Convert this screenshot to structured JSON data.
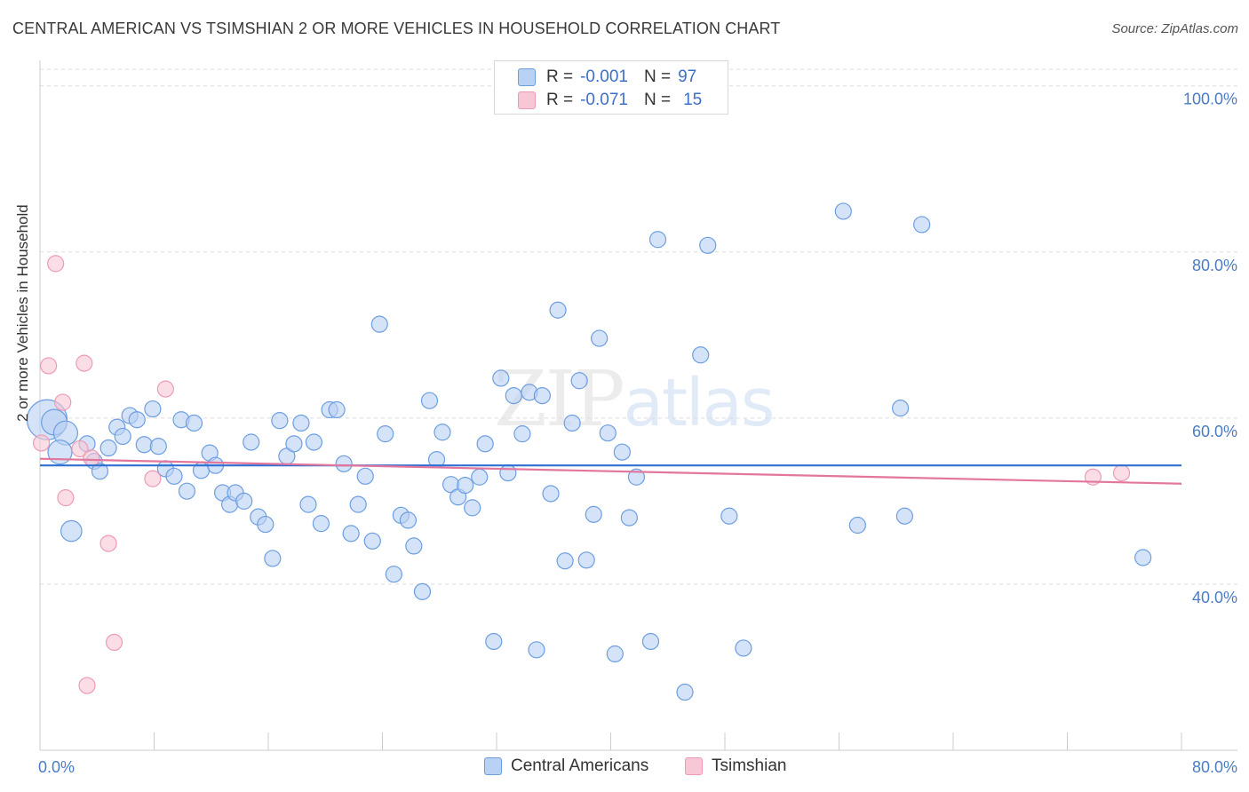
{
  "title": "CENTRAL AMERICAN VS TSIMSHIAN 2 OR MORE VEHICLES IN HOUSEHOLD CORRELATION CHART",
  "source": "Source: ZipAtlas.com",
  "watermark": {
    "zip": "ZIP",
    "atlas": "atlas"
  },
  "legend_top": {
    "rows": [
      {
        "r_label": "R =",
        "r_value": "-0.001",
        "n_label": "N =",
        "n_value": "97"
      },
      {
        "r_label": "R =",
        "r_value": "-0.071",
        "n_label": "N =",
        "n_value": "15"
      }
    ]
  },
  "colors": {
    "blue_fill": "#b9d1f3",
    "blue_stroke": "#6d9ee0",
    "blue_line": "#2e6fd1",
    "pink_fill": "#f8c7d6",
    "pink_stroke": "#ee9ab4",
    "pink_line": "#e3769c",
    "grid": "#dcdcdc",
    "axis": "#cccccc",
    "tick_text": "#4a7cc6"
  },
  "chart_data": {
    "type": "scatter",
    "title": "CENTRAL AMERICAN VS TSIMSHIAN 2 OR MORE VEHICLES IN HOUSEHOLD CORRELATION CHART",
    "xlabel": "",
    "ylabel": "2 or more Vehicles in Household",
    "xlim": [
      0,
      80
    ],
    "ylim": [
      20,
      102
    ],
    "x_tick_labels": [
      "0.0%",
      "80.0%"
    ],
    "y_ticks": [
      40,
      60,
      80,
      100
    ],
    "y_tick_labels": [
      "40.0%",
      "60.0%",
      "80.0%",
      "100.0%"
    ],
    "grid": "horizontal dashed",
    "legend": "bottom-center",
    "series": [
      {
        "name": "Central Americans",
        "color": "#b9d1f3",
        "trend": {
          "x": [
            0,
            80
          ],
          "y": [
            54.3,
            54.3
          ]
        },
        "points": [
          [
            0.5,
            59.8,
            2.5
          ],
          [
            1.0,
            59.5,
            1.6
          ],
          [
            1.8,
            58.2,
            1.5
          ],
          [
            1.4,
            55.9,
            1.5
          ],
          [
            2.2,
            46.4,
            1.3
          ],
          [
            3.3,
            56.9,
            1.0
          ],
          [
            3.8,
            54.8,
            1.0
          ],
          [
            4.2,
            53.6,
            1.0
          ],
          [
            4.8,
            56.4,
            1.0
          ],
          [
            5.4,
            58.9,
            1.0
          ],
          [
            5.8,
            57.8,
            1.0
          ],
          [
            6.3,
            60.3,
            1.0
          ],
          [
            6.8,
            59.8,
            1.0
          ],
          [
            7.3,
            56.8,
            1.0
          ],
          [
            7.9,
            61.1,
            1.0
          ],
          [
            8.3,
            56.6,
            1.0
          ],
          [
            8.8,
            53.9,
            1.0
          ],
          [
            9.4,
            53.0,
            1.0
          ],
          [
            9.9,
            59.8,
            1.0
          ],
          [
            10.3,
            51.2,
            1.0
          ],
          [
            10.8,
            59.4,
            1.0
          ],
          [
            11.3,
            53.7,
            1.0
          ],
          [
            11.9,
            55.8,
            1.0
          ],
          [
            12.3,
            54.3,
            1.0
          ],
          [
            12.8,
            51.0,
            1.0
          ],
          [
            13.3,
            49.6,
            1.0
          ],
          [
            13.7,
            51.0,
            1.0
          ],
          [
            14.3,
            50.0,
            1.0
          ],
          [
            14.8,
            57.1,
            1.0
          ],
          [
            15.3,
            48.1,
            1.0
          ],
          [
            15.8,
            47.2,
            1.0
          ],
          [
            16.3,
            43.1,
            1.0
          ],
          [
            16.8,
            59.7,
            1.0
          ],
          [
            17.3,
            55.4,
            1.0
          ],
          [
            17.8,
            56.9,
            1.0
          ],
          [
            18.3,
            59.4,
            1.0
          ],
          [
            18.8,
            49.6,
            1.0
          ],
          [
            19.2,
            57.1,
            1.0
          ],
          [
            19.7,
            47.3,
            1.0
          ],
          [
            20.3,
            61.0,
            1.0
          ],
          [
            20.8,
            61.0,
            1.0
          ],
          [
            21.3,
            54.5,
            1.0
          ],
          [
            21.8,
            46.1,
            1.0
          ],
          [
            22.3,
            49.6,
            1.0
          ],
          [
            22.8,
            53.0,
            1.0
          ],
          [
            23.3,
            45.2,
            1.0
          ],
          [
            23.8,
            71.3,
            1.0
          ],
          [
            24.2,
            58.1,
            1.0
          ],
          [
            24.8,
            41.2,
            1.0
          ],
          [
            25.3,
            48.3,
            1.0
          ],
          [
            25.8,
            47.7,
            1.0
          ],
          [
            26.2,
            44.6,
            1.0
          ],
          [
            26.8,
            39.1,
            1.0
          ],
          [
            27.3,
            62.1,
            1.0
          ],
          [
            27.8,
            55.0,
            1.0
          ],
          [
            28.2,
            58.3,
            1.0
          ],
          [
            28.8,
            52.0,
            1.0
          ],
          [
            29.3,
            50.5,
            1.0
          ],
          [
            29.8,
            51.9,
            1.0
          ],
          [
            30.3,
            49.2,
            1.0
          ],
          [
            30.8,
            52.9,
            1.0
          ],
          [
            31.2,
            56.9,
            1.0
          ],
          [
            31.8,
            33.1,
            1.0
          ],
          [
            32.3,
            64.8,
            1.0
          ],
          [
            32.8,
            53.4,
            1.0
          ],
          [
            33.2,
            62.7,
            1.0
          ],
          [
            33.8,
            58.1,
            1.0
          ],
          [
            34.3,
            63.1,
            1.0
          ],
          [
            34.8,
            32.1,
            1.0
          ],
          [
            35.2,
            62.7,
            1.0
          ],
          [
            35.8,
            50.9,
            1.0
          ],
          [
            36.3,
            73.0,
            1.0
          ],
          [
            36.8,
            42.8,
            1.0
          ],
          [
            37.3,
            59.4,
            1.0
          ],
          [
            37.8,
            64.5,
            1.0
          ],
          [
            38.3,
            42.9,
            1.0
          ],
          [
            38.8,
            48.4,
            1.0
          ],
          [
            39.2,
            69.6,
            1.0
          ],
          [
            39.8,
            58.2,
            1.0
          ],
          [
            40.3,
            31.6,
            1.0
          ],
          [
            40.8,
            55.9,
            1.0
          ],
          [
            41.3,
            48.0,
            1.0
          ],
          [
            41.8,
            52.9,
            1.0
          ],
          [
            42.8,
            33.1,
            1.0
          ],
          [
            43.3,
            81.5,
            1.0
          ],
          [
            45.2,
            27.0,
            1.0
          ],
          [
            46.3,
            67.6,
            1.0
          ],
          [
            46.8,
            80.8,
            1.0
          ],
          [
            48.3,
            48.2,
            1.0
          ],
          [
            49.3,
            32.3,
            1.0
          ],
          [
            56.3,
            84.9,
            1.0
          ],
          [
            57.3,
            47.1,
            1.0
          ],
          [
            60.3,
            61.2,
            1.0
          ],
          [
            60.6,
            48.2,
            1.0
          ],
          [
            61.8,
            83.3,
            1.0
          ],
          [
            77.3,
            43.2,
            1.0
          ]
        ]
      },
      {
        "name": "Tsimshian",
        "color": "#f8c7d6",
        "trend": {
          "x": [
            0,
            80
          ],
          "y": [
            55.1,
            52.1
          ]
        },
        "points": [
          [
            0.1,
            57.0,
            1.0
          ],
          [
            0.6,
            66.3,
            1.0
          ],
          [
            1.1,
            78.6,
            1.0
          ],
          [
            1.6,
            61.9,
            1.0
          ],
          [
            1.8,
            50.4,
            1.0
          ],
          [
            2.8,
            56.3,
            1.0
          ],
          [
            3.1,
            66.6,
            1.0
          ],
          [
            3.3,
            27.8,
            1.0
          ],
          [
            3.6,
            55.2,
            1.0
          ],
          [
            4.8,
            44.9,
            1.0
          ],
          [
            5.2,
            33.0,
            1.0
          ],
          [
            7.9,
            52.7,
            1.0
          ],
          [
            8.8,
            63.5,
            1.0
          ],
          [
            73.8,
            52.9,
            1.0
          ],
          [
            75.8,
            53.4,
            1.0
          ]
        ]
      }
    ]
  },
  "legend_bottom": {
    "items": [
      "Central Americans",
      "Tsimshian"
    ]
  }
}
